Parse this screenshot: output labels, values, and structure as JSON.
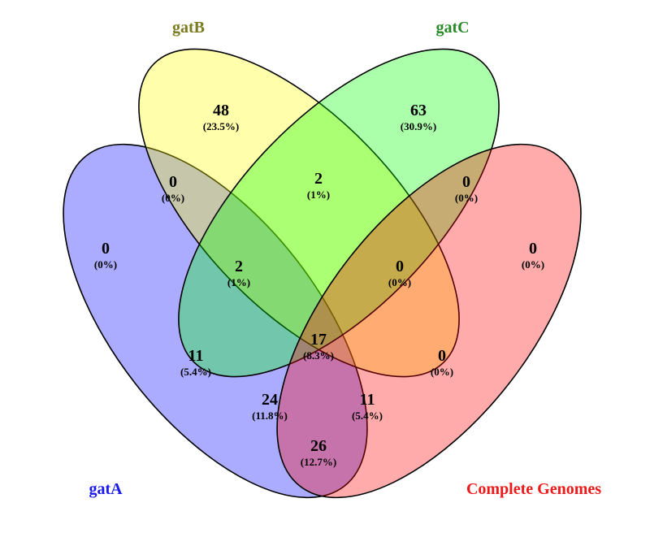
{
  "sets": [
    {
      "name": "gatA",
      "fill": "#0000ff",
      "label_color": "#1a1aee"
    },
    {
      "name": "gatB",
      "fill": "#ffff00",
      "label_color": "#7a7a1e"
    },
    {
      "name": "gatC",
      "fill": "#00ff00",
      "label_color": "#2a8a2a"
    },
    {
      "name": "Complete Genomes",
      "fill": "#ff0000",
      "label_color": "#ee1a1a"
    }
  ],
  "regions": [
    {
      "id": "A",
      "count": "0",
      "percent": "(0%)"
    },
    {
      "id": "B",
      "count": "48",
      "percent": "(23.5%)"
    },
    {
      "id": "C",
      "count": "63",
      "percent": "(30.9%)"
    },
    {
      "id": "D",
      "count": "0",
      "percent": "(0%)"
    },
    {
      "id": "AB",
      "count": "0",
      "percent": "(0%)"
    },
    {
      "id": "BC",
      "count": "2",
      "percent": "(1%)"
    },
    {
      "id": "CD",
      "count": "0",
      "percent": "(0%)"
    },
    {
      "id": "ABC",
      "count": "2",
      "percent": "(1%)"
    },
    {
      "id": "BCD",
      "count": "0",
      "percent": "(0%)"
    },
    {
      "id": "AC",
      "count": "11",
      "percent": "(5.4%)"
    },
    {
      "id": "ABCD",
      "count": "17",
      "percent": "(8.3%)"
    },
    {
      "id": "BD",
      "count": "0",
      "percent": "(0%)"
    },
    {
      "id": "ACD",
      "count": "24",
      "percent": "(11.8%)"
    },
    {
      "id": "ABD",
      "count": "11",
      "percent": "(5.4%)"
    },
    {
      "id": "AD",
      "count": "26",
      "percent": "(12.7%)"
    }
  ]
}
